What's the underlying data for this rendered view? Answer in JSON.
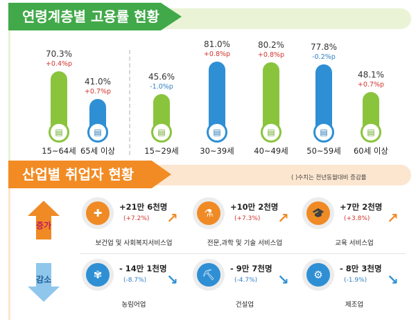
{
  "employment_by_age": {
    "title": "연령계층별 고용률 현황",
    "groups": [
      {
        "age": "15~64세",
        "rate": "70.3%",
        "change": "+0.4%p",
        "direction": "up",
        "bar_color": "green",
        "icon": "document-person-icon"
      },
      {
        "age": "65세 이상",
        "rate": "41.0%",
        "change": "+0.7%p",
        "direction": "up",
        "bar_color": "blue",
        "icon": "document-person-icon"
      },
      {
        "age": "15~29세",
        "rate": "45.6%",
        "change": "-1.0%p",
        "direction": "down",
        "bar_color": "green",
        "icon": "document-person-icon"
      },
      {
        "age": "30~39세",
        "rate": "81.0%",
        "change": "+0.8%p",
        "direction": "up",
        "bar_color": "blue",
        "icon": "document-person-icon"
      },
      {
        "age": "40~49세",
        "rate": "80.2%",
        "change": "+0.8%p",
        "direction": "up",
        "bar_color": "green",
        "icon": "document-person-icon"
      },
      {
        "age": "50~59세",
        "rate": "77.8%",
        "change": "-0.2%p",
        "direction": "down",
        "bar_color": "blue",
        "icon": "document-person-icon"
      },
      {
        "age": "60세 이상",
        "rate": "48.1%",
        "change": "+0.7%p",
        "direction": "up",
        "bar_color": "green",
        "icon": "document-person-icon"
      }
    ]
  },
  "employment_by_industry": {
    "title": "산업별 취업자 현황",
    "note": "( )수치는 전년동월대비 증감률",
    "increase_label": "증가",
    "decrease_label": "감소",
    "increase": [
      {
        "industry": "보건업 및 사회복지서비스업",
        "amount": "+21만 6천명",
        "rate": "(+7.2%)",
        "icon": "first-aid-kit-icon",
        "color": "#f08a24"
      },
      {
        "industry": "전문,과학 및 기술 서비스업",
        "amount": "+10만 2천명",
        "rate": "(+7.3%)",
        "icon": "lab-flask-icon",
        "color": "#f08a24"
      },
      {
        "industry": "교육 서비스업",
        "amount": "+7만 2천명",
        "rate": "(+3.8%)",
        "icon": "graduation-cap-icon",
        "color": "#f08a24"
      }
    ],
    "decrease": [
      {
        "industry": "농림어업",
        "amount": "- 14만 1천명",
        "rate": "(-8.7%)",
        "icon": "wheat-icon",
        "color": "#2f8fd4"
      },
      {
        "industry": "건설업",
        "amount": "- 9만 7천명",
        "rate": "(-4.7%)",
        "icon": "excavator-icon",
        "color": "#2f8fd4"
      },
      {
        "industry": "제조업",
        "amount": "- 8만 3천명",
        "rate": "(-1.9%)",
        "icon": "gears-icon",
        "color": "#2f8fd4"
      }
    ],
    "colors": {
      "increase": "#f08a24",
      "decrease": "#2f8fd4",
      "up_text": "#d0342c",
      "down_text": "#2f7fc4"
    }
  }
}
